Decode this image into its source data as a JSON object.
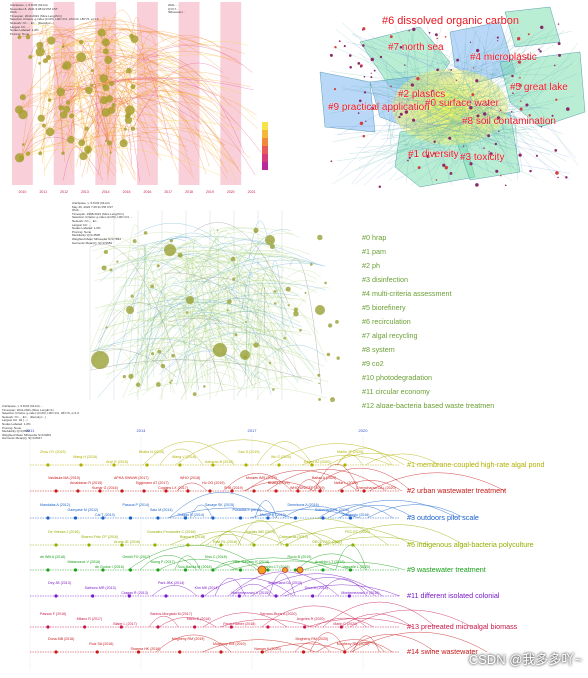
{
  "panel_timezone": {
    "header_lines": [
      "CiteSpace, v. 5.8.R3 (64-bit)",
      "November 8, 2021 9:08:02 PM CST",
      "WoS: ...",
      "Timespan: 2010-2021 (Slice Length=1)",
      "Selection Criteria: g-index (k=25), LRF=3.0, L/N=10, LBY=5, e=1.0",
      "Network: N=..., E=... (Density=...)",
      "Largest CC: ...",
      "Nodes Labeled: 1.0%",
      "Pruning: None"
    ],
    "years": [
      "2010",
      "2011",
      "2012",
      "2013",
      "2014",
      "2015",
      "2016",
      "2017",
      "2018",
      "2019",
      "2020",
      "2021"
    ],
    "right_header": [
      "2021 - ...",
      "Q=0.7...",
      "Silhouette=..."
    ],
    "colors": {
      "stripe": "#f9d0da",
      "edge": "#f08c2a",
      "node": "#a8a030"
    }
  },
  "panel_clusters": {
    "labels": [
      {
        "id": "c6",
        "text": "#6 dissolved organic carbon"
      },
      {
        "id": "c7",
        "text": "#7 north sea"
      },
      {
        "id": "c4",
        "text": "#4 microplastic"
      },
      {
        "id": "c5",
        "text": "#5 great lake"
      },
      {
        "id": "c2",
        "text": "#2 plastics"
      },
      {
        "id": "c0",
        "text": "#0 surface water"
      },
      {
        "id": "c9",
        "text": "#9 practical application"
      },
      {
        "id": "c8",
        "text": "#8 soil contamination"
      },
      {
        "id": "c1",
        "text": "#1 diversity"
      },
      {
        "id": "c3",
        "text": "#3 toxicity"
      }
    ],
    "colors": {
      "label": "#e8141f",
      "hull_green": "#7fe0b0",
      "hull_blue": "#7fb8f0",
      "hull_yellow": "#f0f080"
    }
  },
  "panel_keywords": {
    "header_lines": [
      "CiteSpace, v. 5.8.R3 (64-bit)",
      "May 26, 2022 7:29:11 PM CST",
      "WoS: ...",
      "Timespan: 1998-2021 (Slice Length=1)",
      "Selection Criteria: g-index (k=25), LRF=3.0, ...",
      "Network: N=..., E=...",
      "Largest CC: ...",
      "Nodes Labeled: 1.0%",
      "Pruning: None",
      "Modularity Q=0.4508",
      "Weighted Mean Silhouette S=0.7694",
      "Harmonic Mean(Q, S)=0.5684"
    ],
    "labels": [
      "#0 hrap",
      "#1 pam",
      "#2 ph",
      "#3 disinfection",
      "#4 multi-criteria assessment",
      "#5 biorefinery",
      "#6 recirculation",
      "#7 algal recycling",
      "#8 system",
      "#9 co2",
      "#10 photodegradation",
      "#11 circular economy",
      "#12 algae-bacteria based waste treatmen"
    ],
    "colors": {
      "label": "#6aa034",
      "edge": "#a6d27a",
      "node": "#9aa035"
    }
  },
  "panel_timeline": {
    "header_lines": [
      "CiteSpace, v. 5.8.R3 (64-bit) ...",
      "Timespan: 2011-2021 (Slice Length=1)",
      "Selection Criteria: g-index (k=25), LRF=3.0, LBY=5, e=1.0",
      "Network: N=..., E=... (Density=...)",
      "Largest CC: 94 (...)",
      "Nodes Labeled: 1.0%",
      "Pruning: None",
      "Modularity Q=0.8562",
      "Weighted Mean Silhouette S=0.9303",
      "Harmonic Mean(Q, S)=0.8917"
    ],
    "years": [
      "2011",
      "2014",
      "2017",
      "2020"
    ],
    "clusters": [
      {
        "label": "#1 membrane-coupled high-rate algal pond",
        "color": "#b0b000",
        "refs": [
          "Zhou GY (2015)",
          "Wang H (2016)",
          "Ariyl R (2018)",
          "Bhatia N (2018)",
          "Wang V (2018)",
          "Adharan B (2019)",
          "Gao S (2019)",
          "Wu S (2020)",
          "Reyes AJ (2020)",
          "Martin JF (2020)"
        ]
      },
      {
        "label": "#2 urban wastewater treatment",
        "color": "#c81818",
        "refs": [
          "Vasilaula MA (2015)",
          "Amaldaran R (2015)",
          "Kumar G (2016)",
          "APHA SWWW (2017)",
          "Eggimann AT (2017)",
          "Coggins LX (2017)",
          "WHO (2018)",
          "Ho OG (2019)",
          "SHB (2019)",
          "Moraes IMS (2019)",
          "Bhatia (2019)",
          "WHO/UNICEF (2019)",
          "Baltas A (2020)",
          "Nellar L (2020)",
          "Chemcharad CAL (2020)"
        ]
      },
      {
        "label": "#3 outdoors pilot scale",
        "color": "#1860c8",
        "refs": [
          "Mandalas A (2012)",
          "Gamyase M (2012)",
          "Cai T (2013)",
          "Pascua P (2014)",
          "Satz M (2014)",
          "Craggs R (2014)",
          "Savaye SK (2015)",
          "Posadas E (2015)",
          "Munoz R (2015)",
          "Dennisons A (2016)",
          "Sutherland DL (2016)",
          "Calicioglu (2016)"
        ]
      },
      {
        "label": "#5 indigenous algal-bacteria polyculture",
        "color": "#90b000",
        "refs": [
          "De Vriesse J (2016)",
          "Sharen-Fritz CP (2016)",
          "Aroda JE (2016)",
          "Gonzalez-Fernandez C (2018)",
          "Bianco A (2018)",
          "Ravi RL (2018)",
          "Karalis WB (2019)",
          "Cabeceras (2019)",
          "OECD FAO (2020)",
          "FEC-EC (2020)"
        ]
      },
      {
        "label": "#9 wastewater treatment",
        "color": "#18a018",
        "refs": [
          "de Wilt A (2016)",
          "Matamoros V (2016)",
          "de Godos I (2016)",
          "Gentili FG (2017)",
          "Young P (2017)",
          "Solo-Banda M (2018)",
          "Kiss C (2018)",
          "Villar-Navarro E (2018)",
          "Arashiro LT (2018)",
          "Rocio B (2019)",
          "Arashiro LT (2019)",
          "Vassalle L (2020)"
        ]
      },
      {
        "label": "#11 different isolated colonial",
        "color": "#7818c8",
        "refs": [
          "Dey JB (2013)",
          "Salinoro MR (2013)",
          "Craggs R (2013)",
          "Park JBK (2014)",
          "Kim MK (2014)",
          "Montemezzani V (2015)",
          "Sutherland DL (2015)",
          "Drira M (2016)",
          "Montemezzani V (2016)"
        ]
      },
      {
        "label": "#13 pretreated microalgal biomass",
        "color": "#c81848",
        "refs": [
          "Passos F (2016)",
          "Milano R (2017)",
          "Blaier L (2017)",
          "Santos-Morgado M (2017)",
          "Marin D (2018)",
          "Ferro-Harrier (2018)",
          "Serrano-Buris A (2020)",
          "Angeles R (2020)",
          "Marin D (2020)"
        ]
      },
      {
        "label": "#14 swine wastewater",
        "color": "#c81818",
        "refs": [
          "Dona MB (2016)",
          "Ruiz SA (2016)",
          "Sharma HK (2016)",
          "Mogheny RM (2019)",
          "Mogheny RM (2019)",
          "Naman H (2020)",
          "Mogheny RM (2020)",
          "Mogheny RM (2020)"
        ]
      }
    ]
  },
  "watermark": "CSDN @我多多吖~"
}
